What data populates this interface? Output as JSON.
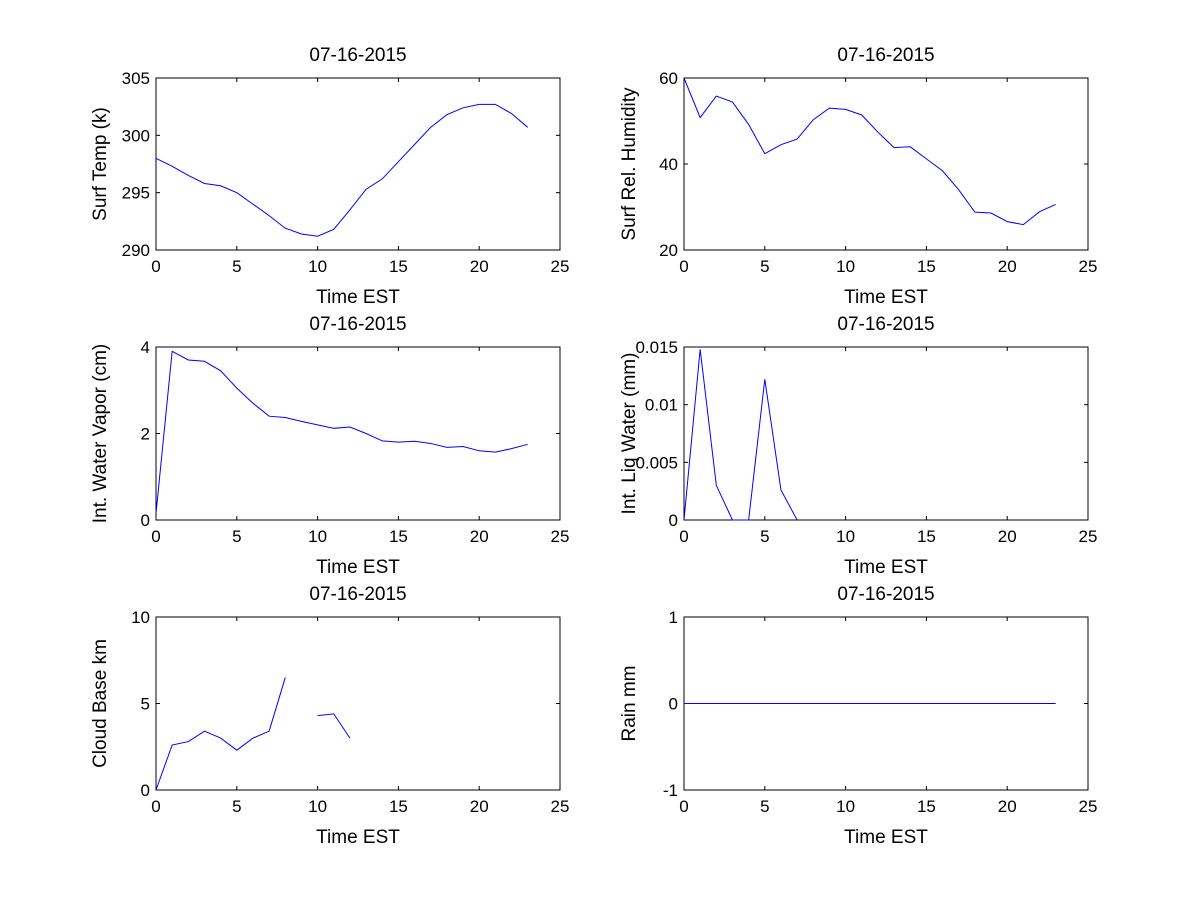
{
  "figure": {
    "background": "#ffffff",
    "line_color": "#0000ff",
    "axis_color": "#000000"
  },
  "chart_data": [
    {
      "type": "line",
      "title": "07-16-2015",
      "xlabel": "Time EST",
      "ylabel": "Surf Temp (k)",
      "xlim": [
        0,
        25
      ],
      "ylim": [
        290,
        305
      ],
      "xticks": [
        0,
        5,
        10,
        15,
        20,
        25
      ],
      "xtick_labels": [
        "0",
        "5",
        "10",
        "15",
        "20",
        "25"
      ],
      "yticks": [
        290,
        295,
        300,
        305
      ],
      "ytick_labels": [
        "290",
        "295",
        "300",
        "305"
      ],
      "grid": false,
      "series": [
        {
          "name": "Surf Temp",
          "x": [
            0,
            1,
            2,
            3,
            4,
            5,
            6,
            7,
            8,
            9,
            10,
            11,
            12,
            13,
            14,
            15,
            16,
            17,
            18,
            19,
            20,
            21,
            22,
            23
          ],
          "y": [
            298,
            297.3,
            296.5,
            295.8,
            295.6,
            295,
            294,
            293,
            291.9,
            291.4,
            291.2,
            291.8,
            293.5,
            295.3,
            296.2,
            297.7,
            299.2,
            300.7,
            301.8,
            302.4,
            302.7,
            302.7,
            301.9,
            300.7
          ]
        }
      ]
    },
    {
      "type": "line",
      "title": "07-16-2015",
      "xlabel": "Time EST",
      "ylabel": "Surf Rel. Humidity",
      "xlim": [
        0,
        25
      ],
      "ylim": [
        20,
        60
      ],
      "xticks": [
        0,
        5,
        10,
        15,
        20,
        25
      ],
      "xtick_labels": [
        "0",
        "5",
        "10",
        "15",
        "20",
        "25"
      ],
      "yticks": [
        20,
        40,
        60
      ],
      "ytick_labels": [
        "20",
        "40",
        "60"
      ],
      "grid": false,
      "series": [
        {
          "name": "Surf Rel. Humidity",
          "x": [
            0,
            1,
            2,
            3,
            4,
            5,
            6,
            7,
            8,
            9,
            10,
            11,
            12,
            13,
            14,
            15,
            16,
            17,
            18,
            19,
            20,
            21,
            22,
            23
          ],
          "y": [
            60,
            50.8,
            55.8,
            54.4,
            49.2,
            42.4,
            44.5,
            45.8,
            50.3,
            53,
            52.7,
            51.4,
            47.4,
            43.8,
            44,
            41.2,
            38.4,
            34,
            28.8,
            28.6,
            26.6,
            25.9,
            28.9,
            30.6
          ]
        }
      ]
    },
    {
      "type": "line",
      "title": "07-16-2015",
      "xlabel": "Time EST",
      "ylabel": "Int. Water Vapor (cm)",
      "xlim": [
        0,
        25
      ],
      "ylim": [
        0,
        4
      ],
      "xticks": [
        0,
        5,
        10,
        15,
        20,
        25
      ],
      "xtick_labels": [
        "0",
        "5",
        "10",
        "15",
        "20",
        "25"
      ],
      "yticks": [
        0,
        2,
        4
      ],
      "ytick_labels": [
        "0",
        "2",
        "4"
      ],
      "grid": false,
      "series": [
        {
          "name": "Int. Water Vapor",
          "x": [
            0,
            1,
            2,
            3,
            4,
            5,
            6,
            7,
            8,
            9,
            10,
            11,
            12,
            13,
            14,
            15,
            16,
            17,
            18,
            19,
            20,
            21,
            22,
            23
          ],
          "y": [
            0.15,
            3.9,
            3.7,
            3.67,
            3.45,
            3.05,
            2.7,
            2.4,
            2.37,
            2.28,
            2.2,
            2.12,
            2.15,
            2,
            1.83,
            1.8,
            1.82,
            1.77,
            1.68,
            1.7,
            1.6,
            1.57,
            1.65,
            1.75
          ]
        }
      ]
    },
    {
      "type": "line",
      "title": "07-16-2015",
      "xlabel": "Time EST",
      "ylabel": "Int. Liq Water (mm)",
      "xlim": [
        0,
        25
      ],
      "ylim": [
        0,
        0.015
      ],
      "xticks": [
        0,
        5,
        10,
        15,
        20,
        25
      ],
      "xtick_labels": [
        "0",
        "5",
        "10",
        "15",
        "20",
        "25"
      ],
      "yticks": [
        0,
        0.005,
        0.01,
        0.015
      ],
      "ytick_labels": [
        "0",
        "0.005",
        "0.01",
        "0.015"
      ],
      "grid": false,
      "series": [
        {
          "name": "Int. Liq Water",
          "x": [
            0,
            1,
            2,
            3,
            4,
            5,
            6,
            7
          ],
          "y": [
            0,
            0.0148,
            0.003,
            0,
            0,
            0.0122,
            0.0026,
            0
          ]
        }
      ]
    },
    {
      "type": "line",
      "title": "07-16-2015",
      "xlabel": "Time EST",
      "ylabel": "Cloud Base km",
      "xlim": [
        0,
        25
      ],
      "ylim": [
        0,
        10
      ],
      "xticks": [
        0,
        5,
        10,
        15,
        20,
        25
      ],
      "xtick_labels": [
        "0",
        "5",
        "10",
        "15",
        "20",
        "25"
      ],
      "yticks": [
        0,
        5,
        10
      ],
      "ytick_labels": [
        "0",
        "5",
        "10"
      ],
      "grid": false,
      "series": [
        {
          "name": "Cloud Base",
          "x": [
            0,
            1,
            2,
            3,
            4,
            5,
            6,
            7,
            8,
            9,
            10,
            11,
            12
          ],
          "y": [
            0,
            2.6,
            2.8,
            3.4,
            3,
            2.3,
            3,
            3.4,
            6.5,
            null,
            4.3,
            4.4,
            3
          ]
        }
      ]
    },
    {
      "type": "line",
      "title": "07-16-2015",
      "xlabel": "Time EST",
      "ylabel": "Rain mm",
      "xlim": [
        0,
        25
      ],
      "ylim": [
        -1,
        1
      ],
      "xticks": [
        0,
        5,
        10,
        15,
        20,
        25
      ],
      "xtick_labels": [
        "0",
        "5",
        "10",
        "15",
        "20",
        "25"
      ],
      "yticks": [
        -1,
        0,
        1
      ],
      "ytick_labels": [
        "-1",
        "0",
        "1"
      ],
      "grid": false,
      "series": [
        {
          "name": "Rain",
          "x": [
            0,
            1,
            2,
            3,
            4,
            5,
            6,
            7,
            8,
            9,
            10,
            11,
            12,
            13,
            14,
            15,
            16,
            17,
            18,
            19,
            20,
            21,
            22,
            23
          ],
          "y": [
            0,
            0,
            0,
            0,
            0,
            0,
            0,
            0,
            0,
            0,
            0,
            0,
            0,
            0,
            0,
            0,
            0,
            0,
            0,
            0,
            0,
            0,
            0,
            0
          ]
        }
      ]
    }
  ]
}
